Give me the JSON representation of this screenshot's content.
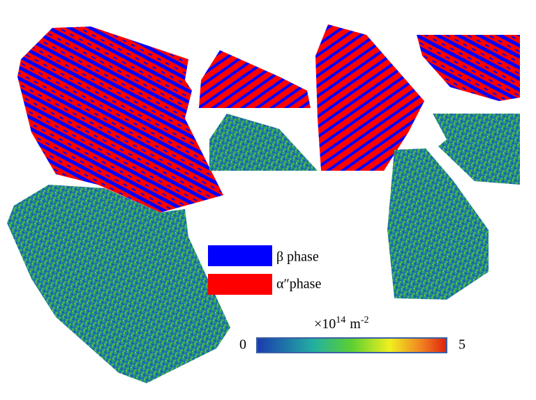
{
  "legend": [
    {
      "label": "β phase",
      "color": "#0000ff"
    },
    {
      "label": "α″phase",
      "color": "#ff0000"
    }
  ],
  "colorbar": {
    "unit_prefix": "×10",
    "unit_exponent": "14",
    "unit": "m",
    "unit_power": "-2",
    "min": "0",
    "max": "5"
  }
}
